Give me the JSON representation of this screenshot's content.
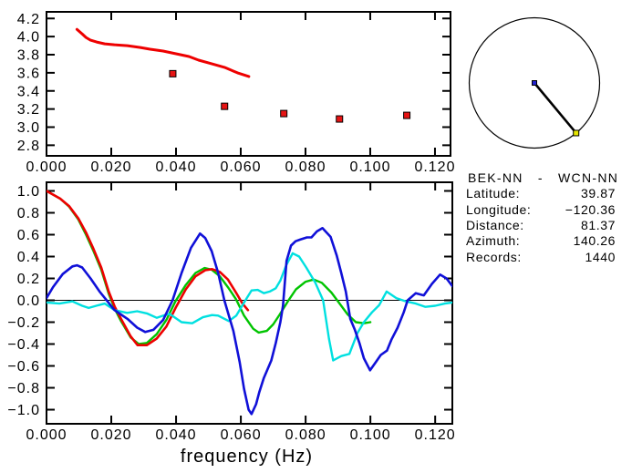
{
  "page": {
    "background": "#ffffff"
  },
  "station_info": {
    "title": "BEK-NN - WCN-NN",
    "rows": [
      {
        "label": "Latitude:",
        "value": "39.87"
      },
      {
        "label": "Longitude:",
        "value": "−120.36"
      },
      {
        "label": "Distance:",
        "value": "81.37"
      },
      {
        "label": "Azimuth:",
        "value": "140.26"
      },
      {
        "label": "Records:",
        "value": "1440"
      }
    ]
  },
  "station_map": {
    "azimuth_deg": 140.26,
    "circle_color": "#000000",
    "line_color": "#000000",
    "center_dot_color": "#2222cc",
    "edge_dot_color": "#e6e600",
    "edge_dot_outline": "#000000"
  },
  "chart_data": [
    {
      "type": "line",
      "name": "dispersion",
      "title": "",
      "xlabel": "",
      "ylabel": "",
      "xlim": [
        0,
        0.1248
      ],
      "ylim": [
        2.683,
        4.273
      ],
      "grid": false,
      "x_ticks": [
        0,
        0.02,
        0.04,
        0.06,
        0.08,
        0.1,
        0.12
      ],
      "x_tick_labels": [
        "0.000",
        "0.020",
        "0.040",
        "0.060",
        "0.080",
        "0.100",
        "0.120"
      ],
      "y_ticks": [
        2.8,
        3.0,
        3.2,
        3.4,
        3.6,
        3.8,
        4.0,
        4.2
      ],
      "y_tick_labels": [
        "2.8",
        "3.0",
        "3.2",
        "3.4",
        "3.6",
        "3.8",
        "4.0",
        "4.2"
      ],
      "series": [
        {
          "name": "group-velocity-curve",
          "kind": "line",
          "color": "#ee0000",
          "width": 3,
          "points": [
            [
              0.0094,
              4.08
            ],
            [
              0.011,
              4.03
            ],
            [
              0.0122,
              3.99
            ],
            [
              0.0136,
              3.96
            ],
            [
              0.0155,
              3.94
            ],
            [
              0.018,
              3.92
            ],
            [
              0.021,
              3.91
            ],
            [
              0.025,
              3.9
            ],
            [
              0.029,
              3.88
            ],
            [
              0.032,
              3.86
            ],
            [
              0.036,
              3.84
            ],
            [
              0.04,
              3.81
            ],
            [
              0.044,
              3.78
            ],
            [
              0.047,
              3.74
            ],
            [
              0.051,
              3.7
            ],
            [
              0.055,
              3.66
            ],
            [
              0.059,
              3.6
            ],
            [
              0.0625,
              3.56
            ]
          ]
        },
        {
          "name": "velocity-picks",
          "kind": "scatter",
          "color": "#e61414",
          "marker": "square",
          "points": [
            [
              0.039,
              3.59
            ],
            [
              0.055,
              3.23
            ],
            [
              0.0733,
              3.15
            ],
            [
              0.0905,
              3.09
            ],
            [
              0.1113,
              3.13
            ]
          ]
        }
      ]
    },
    {
      "type": "line",
      "name": "correlation",
      "title": "",
      "xlabel": "frequency (Hz)",
      "ylabel": "",
      "xlim": [
        0,
        0.1253
      ],
      "ylim": [
        -1.129,
        1.079
      ],
      "grid": false,
      "zero_line": true,
      "x_ticks": [
        0,
        0.02,
        0.04,
        0.06,
        0.08,
        0.1,
        0.12
      ],
      "x_tick_labels": [
        "0.000",
        "0.020",
        "0.040",
        "0.060",
        "0.080",
        "0.100",
        "0.120"
      ],
      "y_ticks": [
        -1.0,
        -0.8,
        -0.6,
        -0.4,
        -0.2,
        0.0,
        0.2,
        0.4,
        0.6,
        0.8,
        1.0
      ],
      "y_tick_labels": [
        "−1.0",
        "−0.8",
        "−0.6",
        "−0.4",
        "−0.2",
        "0.0",
        "0.2",
        "0.4",
        "0.6",
        "0.8",
        "1.0"
      ],
      "series": [
        {
          "name": "corr-green",
          "kind": "line",
          "color": "#00c400",
          "width": 2.4,
          "points": [
            [
              0,
              1.0
            ],
            [
              0.0042,
              0.93
            ],
            [
              0.007,
              0.855
            ],
            [
              0.0098,
              0.74
            ],
            [
              0.0122,
              0.6
            ],
            [
              0.0145,
              0.45
            ],
            [
              0.0169,
              0.28
            ],
            [
              0.0192,
              0.06
            ],
            [
              0.0211,
              -0.08
            ],
            [
              0.023,
              -0.19
            ],
            [
              0.026,
              -0.34
            ],
            [
              0.0285,
              -0.4
            ],
            [
              0.031,
              -0.39
            ],
            [
              0.034,
              -0.31
            ],
            [
              0.037,
              -0.18
            ],
            [
              0.0398,
              -0.01
            ],
            [
              0.043,
              0.14
            ],
            [
              0.046,
              0.25
            ],
            [
              0.0488,
              0.295
            ],
            [
              0.051,
              0.28
            ],
            [
              0.0535,
              0.22
            ],
            [
              0.056,
              0.12
            ],
            [
              0.0585,
              0.01
            ],
            [
              0.061,
              -0.14
            ],
            [
              0.0638,
              -0.26
            ],
            [
              0.0655,
              -0.295
            ],
            [
              0.068,
              -0.28
            ],
            [
              0.07,
              -0.22
            ],
            [
              0.072,
              -0.13
            ],
            [
              0.0745,
              -0.01
            ],
            [
              0.077,
              0.1
            ],
            [
              0.08,
              0.17
            ],
            [
              0.0825,
              0.19
            ],
            [
              0.085,
              0.16
            ],
            [
              0.088,
              0.07
            ],
            [
              0.0905,
              -0.03
            ],
            [
              0.093,
              -0.13
            ],
            [
              0.0955,
              -0.2
            ],
            [
              0.098,
              -0.21
            ],
            [
              0.1,
              -0.2
            ]
          ]
        },
        {
          "name": "corr-red",
          "kind": "line",
          "color": "#ee0000",
          "width": 2.6,
          "points": [
            [
              0,
              1.0
            ],
            [
              0.0042,
              0.93
            ],
            [
              0.007,
              0.86
            ],
            [
              0.0098,
              0.75
            ],
            [
              0.0122,
              0.62
            ],
            [
              0.0145,
              0.47
            ],
            [
              0.0169,
              0.3
            ],
            [
              0.0192,
              0.08
            ],
            [
              0.0211,
              -0.06
            ],
            [
              0.023,
              -0.17
            ],
            [
              0.026,
              -0.33
            ],
            [
              0.0281,
              -0.41
            ],
            [
              0.031,
              -0.41
            ],
            [
              0.034,
              -0.35
            ],
            [
              0.037,
              -0.24
            ],
            [
              0.04,
              -0.06
            ],
            [
              0.043,
              0.1
            ],
            [
              0.046,
              0.22
            ],
            [
              0.049,
              0.275
            ],
            [
              0.0511,
              0.285
            ],
            [
              0.0535,
              0.26
            ],
            [
              0.056,
              0.19
            ],
            [
              0.0585,
              0.07
            ],
            [
              0.0605,
              -0.03
            ],
            [
              0.0622,
              -0.09
            ]
          ]
        },
        {
          "name": "corr-cyan",
          "kind": "line",
          "color": "#00e0e0",
          "width": 2.4,
          "points": [
            [
              0,
              -0.02
            ],
            [
              0.004,
              -0.03
            ],
            [
              0.008,
              -0.01
            ],
            [
              0.011,
              -0.05
            ],
            [
              0.013,
              -0.07
            ],
            [
              0.016,
              -0.045
            ],
            [
              0.018,
              -0.03
            ],
            [
              0.021,
              -0.09
            ],
            [
              0.0249,
              -0.115
            ],
            [
              0.028,
              -0.1
            ],
            [
              0.031,
              -0.12
            ],
            [
              0.034,
              -0.16
            ],
            [
              0.0365,
              -0.135
            ],
            [
              0.038,
              -0.125
            ],
            [
              0.0417,
              -0.2
            ],
            [
              0.045,
              -0.21
            ],
            [
              0.0483,
              -0.155
            ],
            [
              0.0511,
              -0.135
            ],
            [
              0.053,
              -0.14
            ],
            [
              0.0563,
              -0.19
            ],
            [
              0.0586,
              -0.14
            ],
            [
              0.0614,
              0.0
            ],
            [
              0.0633,
              0.09
            ],
            [
              0.0652,
              0.095
            ],
            [
              0.0671,
              0.065
            ],
            [
              0.0689,
              0.08
            ],
            [
              0.0708,
              0.11
            ],
            [
              0.0722,
              0.18
            ],
            [
              0.074,
              0.32
            ],
            [
              0.076,
              0.43
            ],
            [
              0.078,
              0.4
            ],
            [
              0.0802,
              0.3
            ],
            [
              0.083,
              0.16
            ],
            [
              0.0854,
              0.0
            ],
            [
              0.0872,
              -0.35
            ],
            [
              0.0885,
              -0.55
            ],
            [
              0.091,
              -0.51
            ],
            [
              0.0935,
              -0.49
            ],
            [
              0.096,
              -0.3
            ],
            [
              0.098,
              -0.2
            ],
            [
              0.1005,
              -0.11
            ],
            [
              0.1027,
              -0.045
            ],
            [
              0.105,
              0.08
            ],
            [
              0.108,
              0.02
            ],
            [
              0.111,
              -0.01
            ],
            [
              0.114,
              -0.03
            ],
            [
              0.117,
              -0.06
            ],
            [
              0.12,
              -0.05
            ],
            [
              0.123,
              -0.03
            ],
            [
              0.1253,
              -0.02
            ]
          ]
        },
        {
          "name": "corr-blue",
          "kind": "line",
          "color": "#1010d8",
          "width": 2.6,
          "points": [
            [
              0,
              0.02
            ],
            [
              0.002,
              0.12
            ],
            [
              0.005,
              0.24
            ],
            [
              0.008,
              0.31
            ],
            [
              0.0094,
              0.32
            ],
            [
              0.011,
              0.3
            ],
            [
              0.0136,
              0.2
            ],
            [
              0.0164,
              0.08
            ],
            [
              0.0183,
              0.01
            ],
            [
              0.021,
              -0.09
            ],
            [
              0.025,
              -0.17
            ],
            [
              0.028,
              -0.25
            ],
            [
              0.0305,
              -0.29
            ],
            [
              0.033,
              -0.27
            ],
            [
              0.036,
              -0.18
            ],
            [
              0.0389,
              0.0
            ],
            [
              0.0417,
              0.25
            ],
            [
              0.0446,
              0.48
            ],
            [
              0.0474,
              0.61
            ],
            [
              0.049,
              0.57
            ],
            [
              0.051,
              0.45
            ],
            [
              0.053,
              0.25
            ],
            [
              0.0549,
              0.0
            ],
            [
              0.0577,
              -0.28
            ],
            [
              0.0596,
              -0.56
            ],
            [
              0.061,
              -0.81
            ],
            [
              0.0624,
              -1.0
            ],
            [
              0.0633,
              -1.04
            ],
            [
              0.0647,
              -0.95
            ],
            [
              0.0657,
              -0.84
            ],
            [
              0.0671,
              -0.71
            ],
            [
              0.0694,
              -0.55
            ],
            [
              0.0708,
              -0.39
            ],
            [
              0.0722,
              -0.2
            ],
            [
              0.073,
              -0.05
            ],
            [
              0.0741,
              0.36
            ],
            [
              0.0755,
              0.5
            ],
            [
              0.0769,
              0.54
            ],
            [
              0.0783,
              0.555
            ],
            [
              0.0804,
              0.575
            ],
            [
              0.0818,
              0.575
            ],
            [
              0.0835,
              0.63
            ],
            [
              0.0852,
              0.66
            ],
            [
              0.0877,
              0.58
            ],
            [
              0.0896,
              0.41
            ],
            [
              0.091,
              0.25
            ],
            [
              0.0924,
              0.08
            ],
            [
              0.0938,
              -0.17
            ],
            [
              0.0952,
              -0.27
            ],
            [
              0.0966,
              -0.39
            ],
            [
              0.098,
              -0.53
            ],
            [
              0.0999,
              -0.64
            ],
            [
              0.1018,
              -0.56
            ],
            [
              0.1032,
              -0.5
            ],
            [
              0.1051,
              -0.46
            ],
            [
              0.1065,
              -0.36
            ],
            [
              0.1084,
              -0.25
            ],
            [
              0.1103,
              -0.11
            ],
            [
              0.1115,
              0.0
            ],
            [
              0.114,
              0.065
            ],
            [
              0.1165,
              0.045
            ],
            [
              0.119,
              0.15
            ],
            [
              0.1215,
              0.235
            ],
            [
              0.1235,
              0.2
            ],
            [
              0.1253,
              0.13
            ]
          ]
        }
      ]
    }
  ]
}
